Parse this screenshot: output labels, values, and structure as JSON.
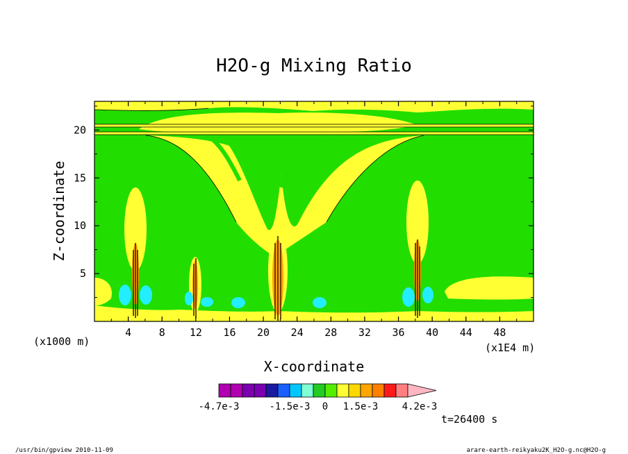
{
  "chart_data": {
    "type": "contour",
    "title": "H2O-g Mixing Ratio",
    "xlabel": "X-coordinate",
    "ylabel": "Z-coordinate",
    "x_offset_label": "(x1000 m)",
    "x_scale_label": "(x1E4 m)",
    "xlim": [
      0,
      52
    ],
    "ylim": [
      0,
      23
    ],
    "x_ticks": [
      4,
      8,
      12,
      16,
      20,
      24,
      28,
      32,
      36,
      40,
      44,
      48
    ],
    "y_ticks": [
      5,
      10,
      15,
      20
    ],
    "colorbar": {
      "levels": [
        -0.0047,
        -0.0042,
        -0.0036,
        -0.003,
        -0.0025,
        -0.002,
        -0.0015,
        -0.001,
        -0.0005,
        0,
        0.0005,
        0.001,
        0.0015,
        0.002,
        0.0025,
        0.0031,
        0.0036,
        0.0042
      ],
      "colors": [
        "#b000b0",
        "#b000b0",
        "#7a00b0",
        "#7a00b0",
        "#1a1aa0",
        "#1a60ff",
        "#00c8ff",
        "#7fffd4",
        "#22cc22",
        "#55ee00",
        "#ffff33",
        "#ffd800",
        "#ffa500",
        "#ff7f00",
        "#ff1a1a",
        "#ff7f7f",
        "#ffb6c1"
      ],
      "tick_labels": [
        "-4.7e-3",
        "-1.5e-3",
        "0",
        "1.5e-3",
        "4.2e-3"
      ]
    },
    "grid": false,
    "legend": "colorbar-bottom",
    "time_label": "t=26400 s"
  },
  "footer": {
    "left": "/usr/bin/gpview  2010-11-09",
    "right": "arare-earth-reikyaku2K_H2O-g.nc@H2O-g"
  },
  "colors": {
    "green": "#22dd00",
    "yellow": "#ffff33",
    "cyan": "#22eeff",
    "orange": "#ffa500",
    "dark": "#552200"
  }
}
